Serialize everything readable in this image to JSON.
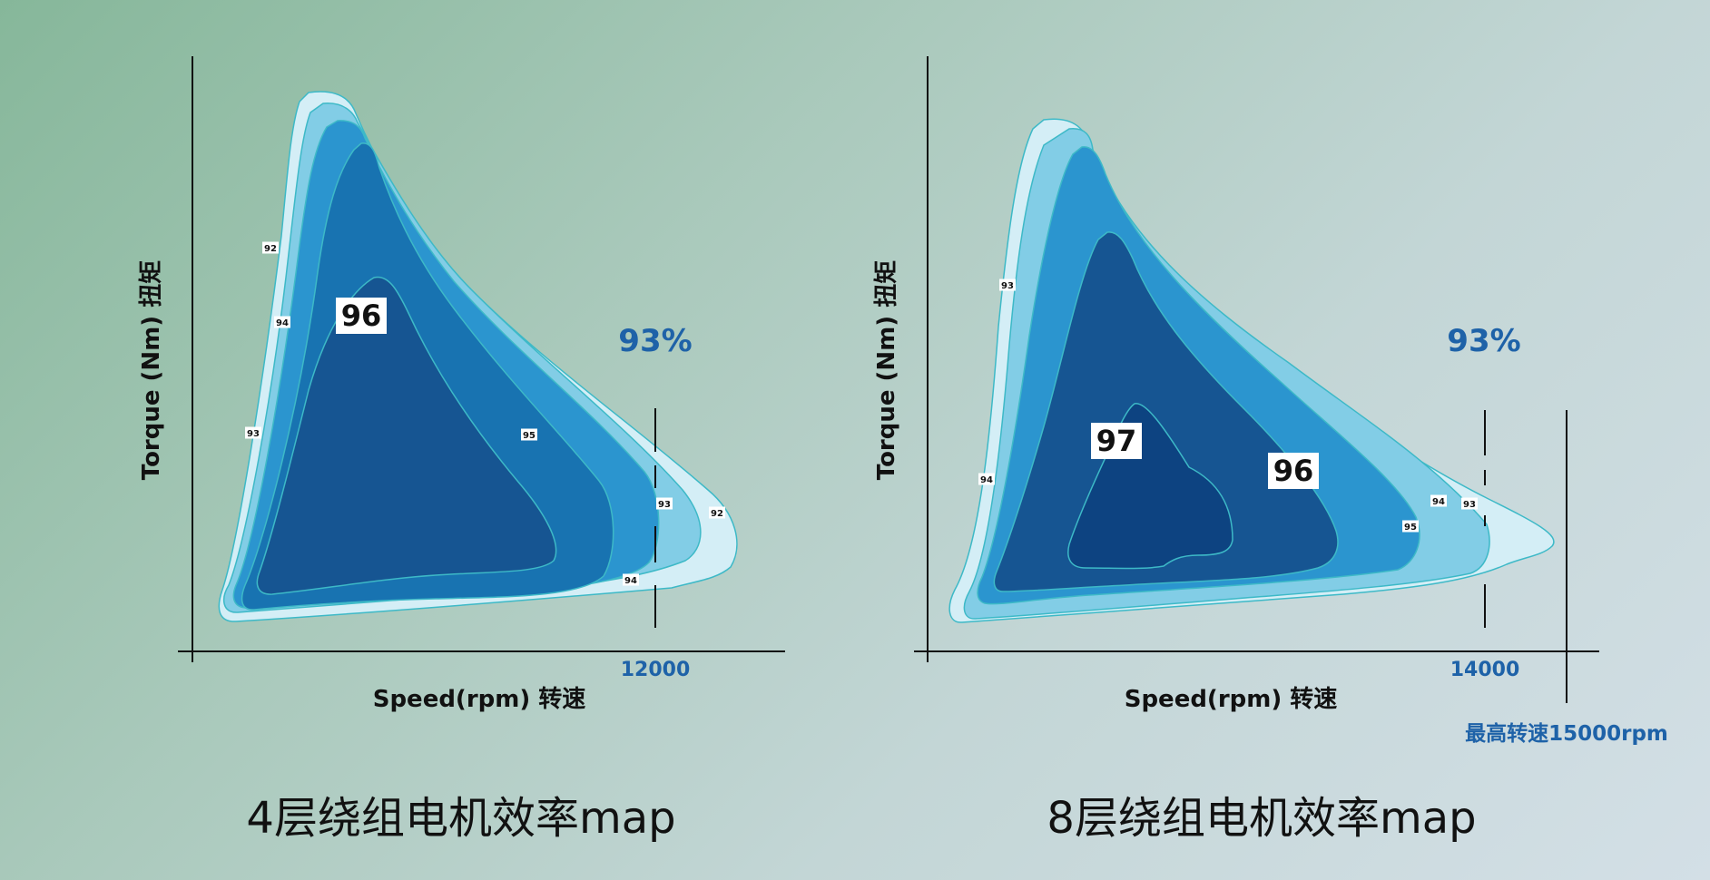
{
  "colors": {
    "band_92": "#d4eef6",
    "band_93": "#82cde6",
    "band_94": "#2b95cf",
    "band_95": "#1873b1",
    "band_96": "#165592",
    "band_97": "#0d4381",
    "contour_stroke": "#3db9c7",
    "accent_blue": "#1e62a8",
    "axis": "#111111"
  },
  "chart_data": [
    {
      "type": "contour",
      "title": "4层绕组电机效率map",
      "xlabel": "Speed(rpm) 转速",
      "ylabel": "Torque (Nm) 扭矩",
      "x_tick": "12000",
      "annotation": "93%",
      "region_labels": [
        {
          "text": "96",
          "big": true
        },
        {
          "text": "92"
        },
        {
          "text": "94"
        },
        {
          "text": "93"
        },
        {
          "text": "95"
        },
        {
          "text": "93"
        },
        {
          "text": "92"
        },
        {
          "text": "94"
        }
      ],
      "levels": [
        "92",
        "93",
        "94",
        "95",
        "96"
      ]
    },
    {
      "type": "contour",
      "title": "8层绕组电机效率map",
      "xlabel": "Speed(rpm) 转速",
      "ylabel": "Torque (Nm) 扭矩",
      "x_tick": "14000",
      "annotation": "93%",
      "max_speed_label": "最高转速15000rpm",
      "region_labels": [
        {
          "text": "97",
          "big": true
        },
        {
          "text": "96",
          "big": true
        },
        {
          "text": "93"
        },
        {
          "text": "94"
        },
        {
          "text": "94"
        },
        {
          "text": "93"
        },
        {
          "text": "95"
        }
      ],
      "levels": [
        "92",
        "93",
        "94",
        "95",
        "96",
        "97"
      ]
    }
  ]
}
